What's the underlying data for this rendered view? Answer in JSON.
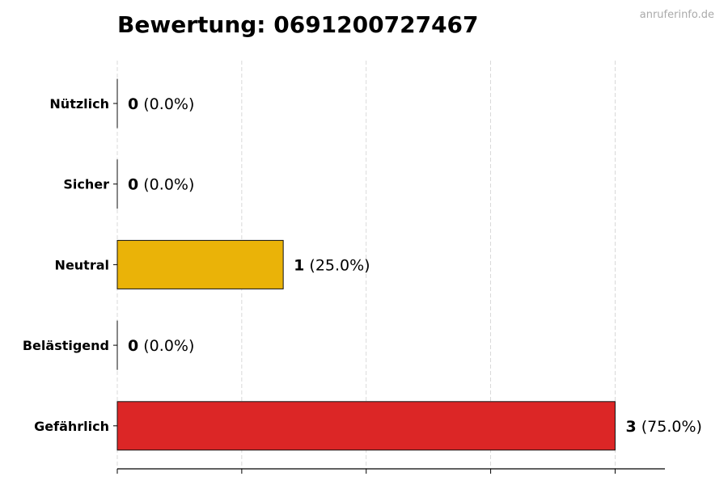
{
  "watermark": "anruferinfo.de",
  "chart_data": {
    "type": "bar",
    "orientation": "horizontal",
    "title": "Bewertung: 0691200727467",
    "xlabel": "",
    "ylabel": "",
    "categories": [
      "Nützlich",
      "Sicher",
      "Neutral",
      "Belästigend",
      "Gefährlich"
    ],
    "values": [
      0,
      0,
      1,
      0,
      3
    ],
    "value_labels": [
      "(0.0%)",
      "(0.0%)",
      "(25.0%)",
      "(0.0%)",
      "(75.0%)"
    ],
    "colors": [
      "#16a34a",
      "#2563eb",
      "#eab308",
      "#f97316",
      "#dc2626"
    ],
    "xlim": [
      0,
      3.3
    ],
    "x_gridlines": [
      0,
      0.75,
      1.5,
      2.25,
      3.0
    ],
    "grid": "x, dashed",
    "x_tick_labels_shown": false,
    "legend": "none"
  }
}
